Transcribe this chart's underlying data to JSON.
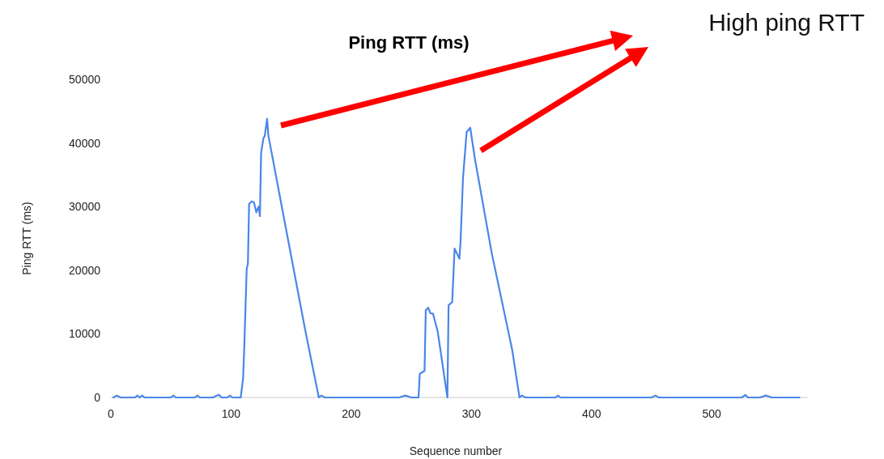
{
  "chart_data": {
    "type": "line",
    "title": "Ping RTT (ms)",
    "xlabel": "Sequence number",
    "ylabel": "Ping RTT (ms)",
    "annotations": [
      "High ping RTT"
    ],
    "xlim": [
      0,
      580
    ],
    "xticks": [
      0,
      100,
      200,
      300,
      400,
      500
    ],
    "ylim": [
      0,
      50000
    ],
    "yticks": [
      0,
      10000,
      20000,
      30000,
      40000,
      50000
    ],
    "grid": false,
    "marker": "none",
    "line_style": "solid",
    "series": [
      {
        "color": "#4a86e8",
        "x": [
          2,
          5,
          8,
          20,
          22,
          24,
          26,
          28,
          50,
          52,
          54,
          70,
          72,
          74,
          85,
          88,
          90,
          92,
          97,
          99,
          101,
          108,
          110,
          111,
          113,
          114,
          115,
          117,
          119,
          121,
          123,
          124,
          125,
          127,
          128,
          130,
          131,
          145,
          162,
          173,
          175,
          178,
          200,
          240,
          245,
          250,
          256,
          257,
          261,
          262,
          264,
          266,
          268,
          272,
          280,
          281,
          284,
          286,
          290,
          291,
          293,
          296,
          299,
          303,
          317,
          334,
          340,
          342,
          345,
          360,
          370,
          372,
          374,
          400,
          450,
          453,
          456,
          500,
          525,
          528,
          530,
          540,
          545,
          550,
          560,
          573
        ],
        "values": [
          0,
          300,
          0,
          0,
          300,
          0,
          300,
          0,
          0,
          300,
          0,
          0,
          300,
          0,
          0,
          300,
          400,
          0,
          0,
          300,
          0,
          0,
          3000,
          8000,
          20200,
          21000,
          30400,
          30800,
          30700,
          29100,
          30000,
          28500,
          38500,
          40800,
          41100,
          43800,
          41200,
          27200,
          10300,
          0,
          300,
          0,
          0,
          0,
          300,
          0,
          0,
          3700,
          4200,
          13700,
          14100,
          13200,
          13200,
          10300,
          0,
          14500,
          15000,
          23400,
          21800,
          24700,
          34500,
          41700,
          42400,
          37400,
          22600,
          7400,
          0,
          300,
          0,
          0,
          0,
          300,
          0,
          0,
          0,
          300,
          0,
          0,
          0,
          400,
          0,
          0,
          300,
          0,
          0,
          0
        ]
      }
    ]
  }
}
